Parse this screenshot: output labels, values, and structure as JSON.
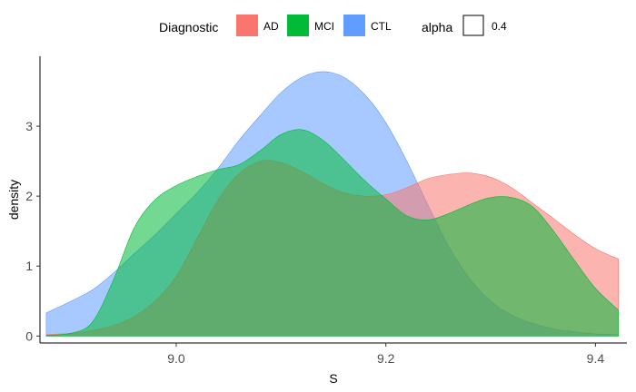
{
  "chart_data": {
    "type": "area",
    "xlabel": "S",
    "ylabel": "density",
    "xlim": [
      8.87,
      9.43
    ],
    "ylim": [
      -0.1,
      4.0
    ],
    "x_ticks": [
      9.0,
      9.2,
      9.4
    ],
    "x_tick_labels": [
      "9.0",
      "9.2",
      "9.4"
    ],
    "y_ticks": [
      0,
      1,
      2,
      3
    ],
    "y_tick_labels": [
      "0",
      "1",
      "2",
      "3"
    ],
    "grid": false,
    "legend_position": "top",
    "legend": {
      "fill_title": "Diagnostic",
      "alpha_title": "alpha",
      "alpha_value": "0.4"
    },
    "series": [
      {
        "name": "CTL",
        "color": "#619CFF",
        "x": [
          8.876,
          8.9,
          8.92,
          8.94,
          8.96,
          8.98,
          9.0,
          9.02,
          9.04,
          9.06,
          9.08,
          9.1,
          9.12,
          9.14,
          9.16,
          9.18,
          9.2,
          9.22,
          9.24,
          9.26,
          9.28,
          9.3,
          9.32,
          9.34,
          9.36,
          9.38,
          9.4,
          9.422
        ],
        "y": [
          0.33,
          0.5,
          0.66,
          0.9,
          1.18,
          1.45,
          1.75,
          2.05,
          2.4,
          2.8,
          3.15,
          3.48,
          3.7,
          3.78,
          3.7,
          3.45,
          3.05,
          2.5,
          1.88,
          1.28,
          0.82,
          0.5,
          0.3,
          0.18,
          0.1,
          0.06,
          0.03,
          0.02
        ]
      },
      {
        "name": "AD",
        "color": "#F8766D",
        "x": [
          8.876,
          8.9,
          8.92,
          8.94,
          8.96,
          8.98,
          9.0,
          9.02,
          9.04,
          9.06,
          9.08,
          9.1,
          9.12,
          9.14,
          9.16,
          9.18,
          9.2,
          9.22,
          9.24,
          9.26,
          9.28,
          9.3,
          9.32,
          9.34,
          9.36,
          9.38,
          9.4,
          9.422
        ],
        "y": [
          0.02,
          0.04,
          0.08,
          0.15,
          0.28,
          0.5,
          0.85,
          1.4,
          1.95,
          2.32,
          2.5,
          2.48,
          2.35,
          2.18,
          2.05,
          2.0,
          2.02,
          2.12,
          2.25,
          2.31,
          2.33,
          2.27,
          2.12,
          1.9,
          1.68,
          1.45,
          1.25,
          1.1
        ]
      },
      {
        "name": "MCI",
        "color": "#00BA38",
        "x": [
          8.876,
          8.9,
          8.92,
          8.94,
          8.96,
          8.98,
          9.0,
          9.02,
          9.04,
          9.06,
          9.08,
          9.1,
          9.12,
          9.14,
          9.16,
          9.18,
          9.2,
          9.22,
          9.24,
          9.26,
          9.28,
          9.3,
          9.32,
          9.34,
          9.36,
          9.38,
          9.4,
          9.422
        ],
        "y": [
          0.01,
          0.04,
          0.2,
          0.8,
          1.55,
          1.95,
          2.15,
          2.28,
          2.38,
          2.45,
          2.65,
          2.88,
          2.95,
          2.8,
          2.52,
          2.22,
          1.96,
          1.72,
          1.66,
          1.75,
          1.88,
          1.98,
          1.98,
          1.85,
          1.5,
          1.08,
          0.68,
          0.37
        ]
      }
    ]
  }
}
